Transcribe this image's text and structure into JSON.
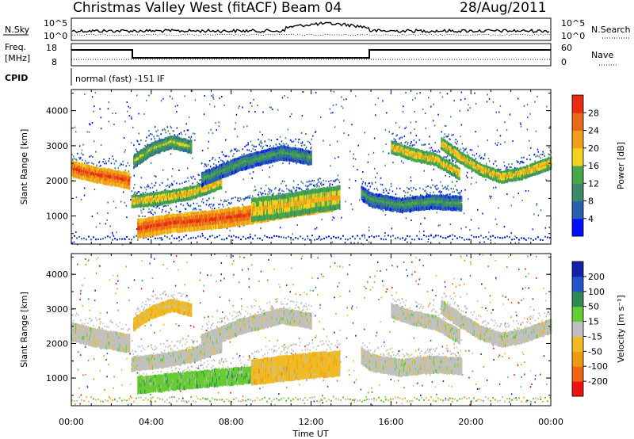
{
  "header": {
    "title": "Christmas Valley West (fitACF)",
    "beam": "Beam 04",
    "date": "28/Aug/2011"
  },
  "strip": {
    "nsky_label": "N.Sky",
    "nsky_ticks": [
      "10^5",
      "10^0"
    ],
    "nsearch_label": "N.Search",
    "nsearch_ticks": [
      "10^5",
      "10^0"
    ],
    "freq_label": "Freq.",
    "freq_unit": "[MHz]",
    "freq_ticks": [
      "18",
      "8"
    ],
    "nave_label": "Nave",
    "nave_ticks": [
      "60",
      "0"
    ],
    "cpid_label": "CPID",
    "cpid_text": "normal (fast) -151 IF"
  },
  "colors": {
    "power_scale": [
      "#0010ff",
      "#2a5fb0",
      "#3d8a6a",
      "#48a848",
      "#f4d020",
      "#f0a018",
      "#ea6818",
      "#e82c10"
    ],
    "velocity_scale": [
      "#ee1111",
      "#ee6611",
      "#ee9911",
      "#f0bb22",
      "#c0c0c0",
      "#66cc33",
      "#2e8a55",
      "#2255cc",
      "#1122aa"
    ]
  },
  "chart_data": [
    {
      "type": "heatmap",
      "title": "",
      "xlabel": "",
      "ylabel": "Slant Range [km]",
      "xlim": [
        0,
        24
      ],
      "ylim": [
        200,
        4600
      ],
      "yticks": [
        "1000",
        "2000",
        "3000",
        "4000"
      ],
      "colorbar_label": "Power [dB]",
      "colorbar_ticks": [
        "4",
        "8",
        "12",
        "16",
        "20",
        "24",
        "28"
      ],
      "bands": [
        {
          "t": [
            0.0,
            1.0,
            2.0,
            2.9
          ],
          "r": [
            2400,
            2250,
            2150,
            2050
          ],
          "width": 220,
          "level": 7
        },
        {
          "t": [
            3.0,
            4.5,
            6.0,
            7.5
          ],
          "r": [
            1450,
            1550,
            1700,
            2000
          ],
          "width": 180,
          "level": 5
        },
        {
          "t": [
            3.1,
            4.0,
            5.0,
            6.0
          ],
          "r": [
            2600,
            2950,
            3150,
            3000
          ],
          "width": 180,
          "level": 4
        },
        {
          "t": [
            3.3,
            5.0,
            7.0,
            9.0,
            11.0,
            13.0
          ],
          "r": [
            700,
            850,
            950,
            1100,
            1300,
            1450
          ],
          "width": 260,
          "level": 7
        },
        {
          "t": [
            9.0,
            10.5,
            12.0,
            13.4
          ],
          "r": [
            1250,
            1350,
            1500,
            1600
          ],
          "width": 330,
          "level": 5
        },
        {
          "t": [
            6.5,
            8.5,
            10.5,
            12.0
          ],
          "r": [
            2100,
            2550,
            2850,
            2700
          ],
          "width": 200,
          "level": 3
        },
        {
          "t": [
            14.5,
            15.0,
            16.5,
            18.0,
            19.5
          ],
          "r": [
            1700,
            1500,
            1350,
            1450,
            1400
          ],
          "width": 200,
          "level": 3
        },
        {
          "t": [
            16.0,
            17.0,
            18.2,
            19.4
          ],
          "r": [
            3000,
            2800,
            2650,
            2250
          ],
          "width": 170,
          "level": 5
        },
        {
          "t": [
            18.5,
            19.5,
            20.5,
            21.5,
            22.5,
            24.0
          ],
          "r": [
            3100,
            2700,
            2350,
            2150,
            2250,
            2550
          ],
          "width": 170,
          "level": 5
        }
      ]
    },
    {
      "type": "heatmap",
      "title": "",
      "xlabel": "Time UT",
      "ylabel": "Slant Range [km]",
      "xlim": [
        0,
        24
      ],
      "ylim": [
        200,
        4600
      ],
      "xticks": [
        "00:00",
        "04:00",
        "08:00",
        "12:00",
        "16:00",
        "20:00",
        "00:00"
      ],
      "yticks": [
        "1000",
        "2000",
        "3000",
        "4000"
      ],
      "colorbar_label": "Velocity [m s⁻¹]",
      "colorbar_ticks": [
        "200",
        "100",
        "50",
        "15",
        "-15",
        "-50",
        "-100",
        "-200"
      ],
      "bands": [
        {
          "t": [
            0.0,
            1.0,
            2.0,
            2.9
          ],
          "r": [
            2400,
            2250,
            2150,
            2050
          ],
          "width": 260,
          "level": 4
        },
        {
          "t": [
            3.0,
            4.5,
            6.0,
            7.5
          ],
          "r": [
            1450,
            1550,
            1700,
            2000
          ],
          "width": 200,
          "level": 4
        },
        {
          "t": [
            3.1,
            4.0,
            5.0,
            6.0
          ],
          "r": [
            2600,
            2950,
            3150,
            3000
          ],
          "width": 180,
          "level": 3
        },
        {
          "t": [
            3.3,
            5.0,
            7.0,
            9.0
          ],
          "r": [
            850,
            950,
            1050,
            1150
          ],
          "width": 240,
          "level": 5
        },
        {
          "t": [
            9.0,
            10.5,
            12.0,
            13.4
          ],
          "r": [
            1250,
            1350,
            1450,
            1500
          ],
          "width": 360,
          "level": 3
        },
        {
          "t": [
            6.5,
            8.5,
            10.5,
            12.0
          ],
          "r": [
            2100,
            2550,
            2850,
            2700
          ],
          "width": 220,
          "level": 4
        },
        {
          "t": [
            14.5,
            15.0,
            16.5,
            18.0,
            19.5
          ],
          "r": [
            1700,
            1500,
            1350,
            1450,
            1400
          ],
          "width": 240,
          "level": 4
        },
        {
          "t": [
            16.0,
            17.0,
            18.2,
            19.4
          ],
          "r": [
            3000,
            2800,
            2650,
            2250
          ],
          "width": 200,
          "level": 4
        },
        {
          "t": [
            18.5,
            19.5,
            20.5,
            21.5,
            22.5,
            24.0
          ],
          "r": [
            3100,
            2700,
            2350,
            2150,
            2250,
            2550
          ],
          "width": 200,
          "level": 4
        }
      ]
    }
  ]
}
